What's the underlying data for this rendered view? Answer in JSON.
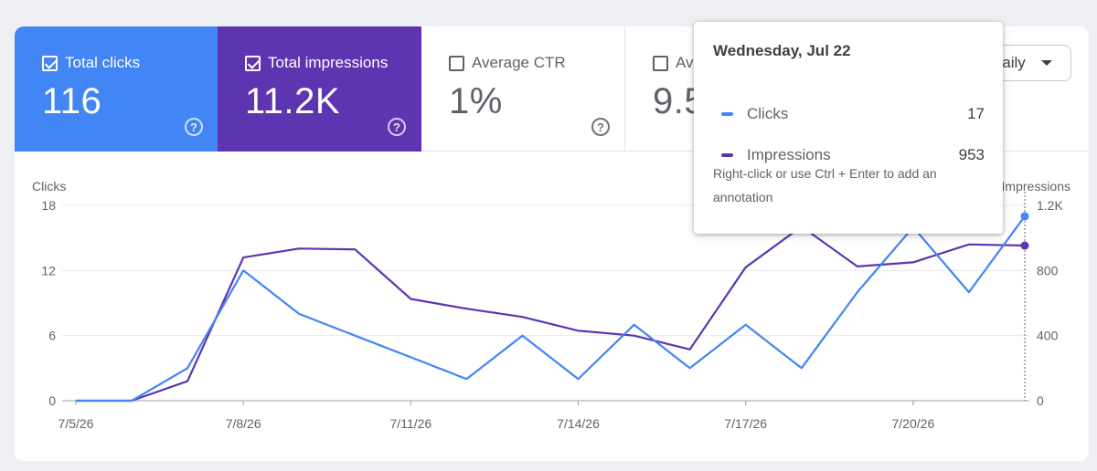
{
  "tiles": [
    {
      "label": "Total clicks",
      "value": "116",
      "checked": true
    },
    {
      "label": "Total impressions",
      "value": "11.2K",
      "checked": true
    },
    {
      "label": "Average CTR",
      "value": "1%",
      "checked": false
    },
    {
      "label": "Average position",
      "value": "9.5",
      "checked": false
    }
  ],
  "help_glyph": "?",
  "period_select": {
    "value": "Daily"
  },
  "tooltip": {
    "date": "Wednesday, Jul 22",
    "rows": [
      {
        "label": "Clicks",
        "value": "17"
      },
      {
        "label": "Impressions",
        "value": "953"
      }
    ],
    "note": "Right-click or use Ctrl + Enter to add an annotation"
  },
  "colors": {
    "clicks": "#4285f4",
    "impressions": "#5e35b1"
  },
  "chart_data": {
    "type": "line",
    "x": [
      "7/5/26",
      "7/6/26",
      "7/7/26",
      "7/8/26",
      "7/9/26",
      "7/10/26",
      "7/11/26",
      "7/12/26",
      "7/13/26",
      "7/14/26",
      "7/15/26",
      "7/16/26",
      "7/17/26",
      "7/18/26",
      "7/19/26",
      "7/20/26",
      "7/21/26",
      "7/22/26"
    ],
    "x_tick_labels": [
      "7/5/26",
      "7/8/26",
      "7/11/26",
      "7/14/26",
      "7/17/26",
      "7/20/26"
    ],
    "series": [
      {
        "name": "Clicks",
        "axis": "left",
        "color": "#4285f4",
        "values": [
          0,
          0,
          3,
          12,
          8,
          6,
          4,
          2,
          6,
          2,
          7,
          3,
          7,
          3,
          10,
          16,
          10,
          17
        ]
      },
      {
        "name": "Impressions",
        "axis": "right",
        "color": "#5e35b1",
        "values": [
          0,
          0,
          120,
          880,
          935,
          930,
          625,
          565,
          515,
          430,
          400,
          315,
          820,
          1070,
          825,
          850,
          960,
          953
        ]
      }
    ],
    "ylabel": "Clicks",
    "ylabel_right": "Impressions",
    "ylim": [
      0,
      18
    ],
    "yticks": [
      0,
      6,
      12,
      18
    ],
    "ylim_right": [
      0,
      1200
    ],
    "yticks_right_labels": [
      "0",
      "400",
      "800",
      "1.2K"
    ],
    "grid": true,
    "highlight_x": "7/22/26"
  }
}
